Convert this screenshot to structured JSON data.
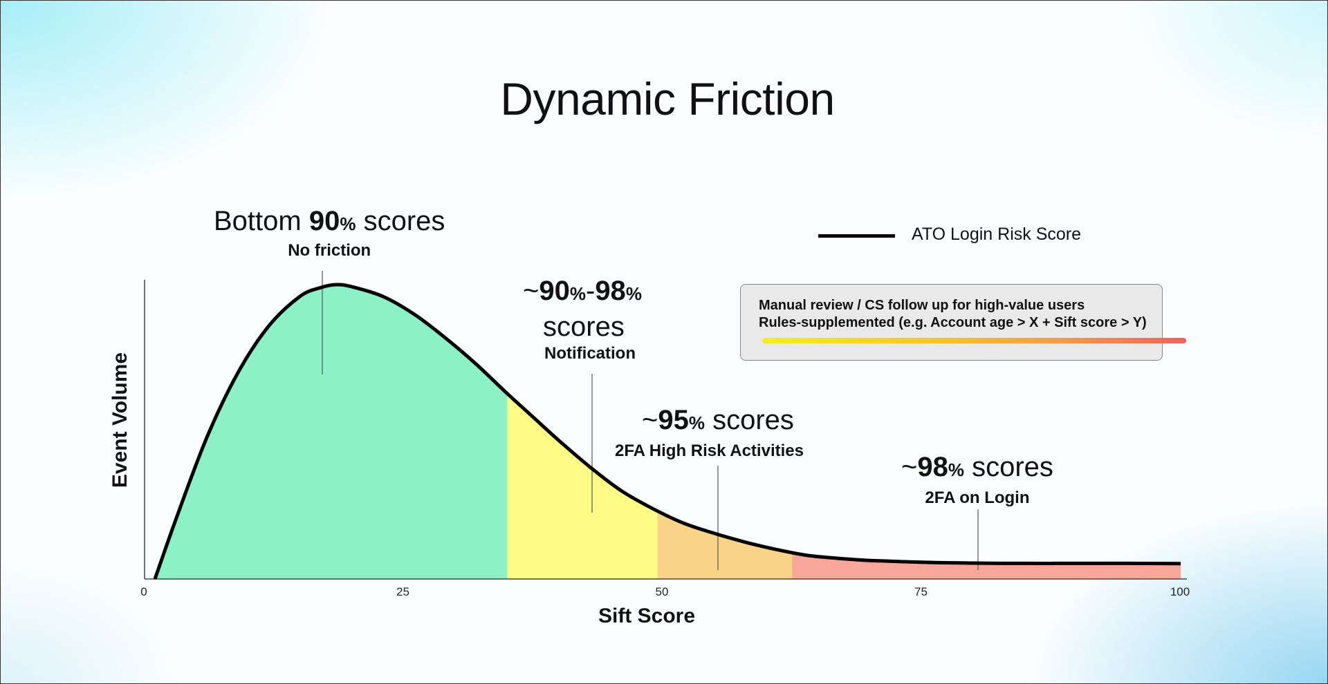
{
  "chart_data": {
    "type": "area",
    "title": "Dynamic Friction",
    "xlabel": "Sift Score",
    "ylabel": "Event Volume",
    "xlim": [
      0,
      100
    ],
    "x_ticks": [
      "0",
      "25",
      "50",
      "75",
      "100"
    ],
    "legend": {
      "label": "ATO Login Risk Score",
      "placement": "top-right"
    },
    "series": [
      {
        "name": "ATO Login Risk Score",
        "x": [
          1,
          3,
          6,
          9,
          12,
          15,
          17,
          18.5,
          20,
          23,
          26,
          29,
          32,
          35,
          37.5,
          40,
          43,
          46,
          49,
          52,
          55,
          58,
          61,
          64,
          67,
          70,
          75,
          80,
          85,
          90,
          95,
          100
        ],
        "y": [
          0,
          20,
          48,
          70,
          86,
          96,
          99,
          100,
          99.3,
          96,
          90,
          82,
          73,
          63,
          55,
          47,
          38,
          30,
          24,
          19,
          15.5,
          12.5,
          10,
          8,
          7,
          6.3,
          5.7,
          5.4,
          5.3,
          5.3,
          5.3,
          5.2
        ]
      }
    ],
    "regions": [
      {
        "x_range": [
          1,
          35
        ],
        "color": "#8cf2c5"
      },
      {
        "x_range": [
          35,
          49.5
        ],
        "color": "#fdfd85"
      },
      {
        "x_range": [
          49.5,
          62.5
        ],
        "color": "#f9d488"
      },
      {
        "x_range": [
          62.5,
          100
        ],
        "color": "#f8a59a"
      }
    ],
    "annotations": [
      {
        "id": "bottom90",
        "pre": "Bottom ",
        "num": "90",
        "pct": "%",
        "post": " scores",
        "sub": "No friction"
      },
      {
        "id": "p90_98",
        "pre": "~",
        "num": "90",
        "pct": "%",
        "dash": "-",
        "num2": "98",
        "pct2": "%",
        "line2": "scores",
        "sub": "Notification"
      },
      {
        "id": "p95",
        "pre": "~",
        "num": "95",
        "pct": "%",
        "post": " scores",
        "sub": "2FA High Risk Activities"
      },
      {
        "id": "p98",
        "pre": "~",
        "num": "98",
        "pct": "%",
        "post": " scores",
        "sub": "2FA on Login"
      }
    ],
    "callout": {
      "line1": "Manual review / CS follow up for high-value users",
      "line2": "Rules-supplemented (e.g. Account age > X + Sift score > Y)",
      "gradient_colors": [
        "#f5ee1a",
        "#f7c623",
        "#f79a45",
        "#f2605f"
      ]
    }
  }
}
